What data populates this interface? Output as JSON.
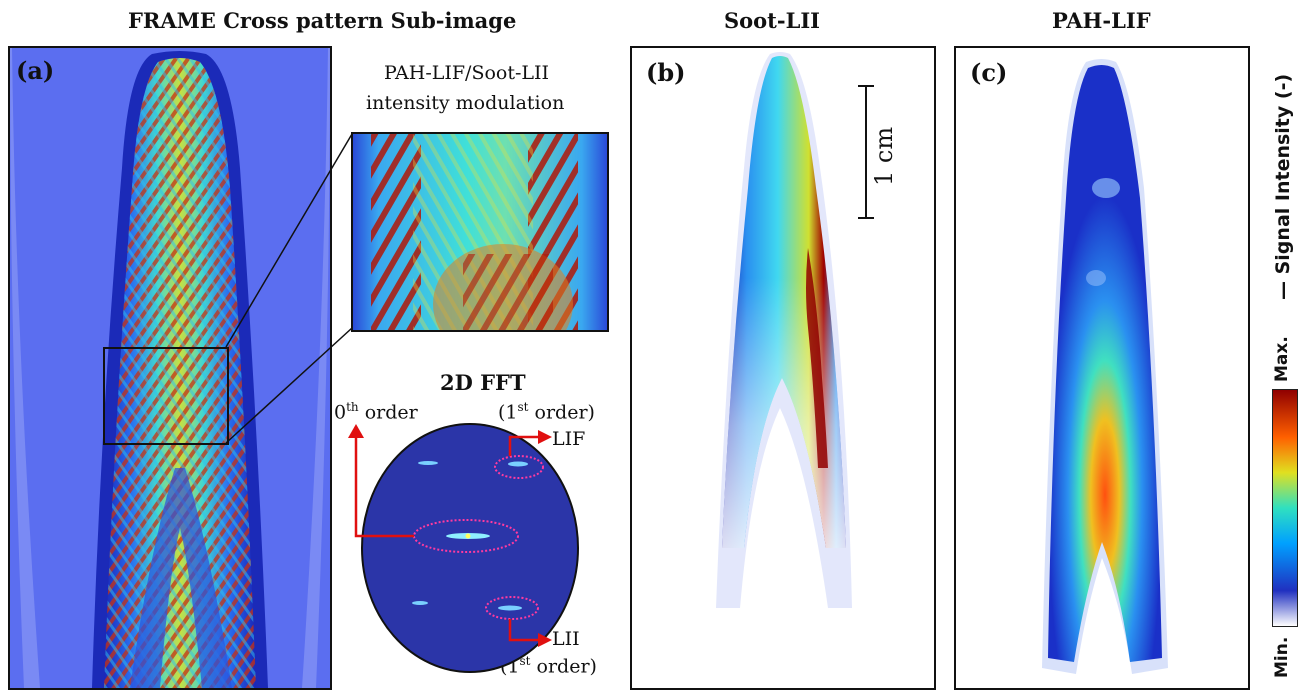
{
  "titles": {
    "frame": "FRAME Cross pattern Sub-image",
    "soot": "Soot-LII",
    "pah": "PAH-LIF"
  },
  "panels": {
    "a": "(a)",
    "b": "(b)",
    "c": "(c)"
  },
  "inset": {
    "line1": "PAH-LIF/Soot-LII",
    "line2": "intensity modulation"
  },
  "fft": {
    "title": "2D FFT",
    "zeroth": "0",
    "zeroth_sup": "th",
    "zeroth_rest": " order",
    "first_top": "(1",
    "first_sup": "st",
    "first_rest": " order)",
    "lif": "LIF",
    "lii": "LII",
    "first_bottom": "(1",
    "first_bottom_sup": "st",
    "first_bottom_rest": " order)"
  },
  "scale_bar": "1 cm",
  "colorbar": {
    "max": "Max.",
    "min": "Min.",
    "label": "— Signal Intensity (-)",
    "colors": [
      "#ffffff",
      "#2030c0",
      "#00a0ff",
      "#30e0c0",
      "#e0e020",
      "#ff6000",
      "#900000"
    ]
  }
}
